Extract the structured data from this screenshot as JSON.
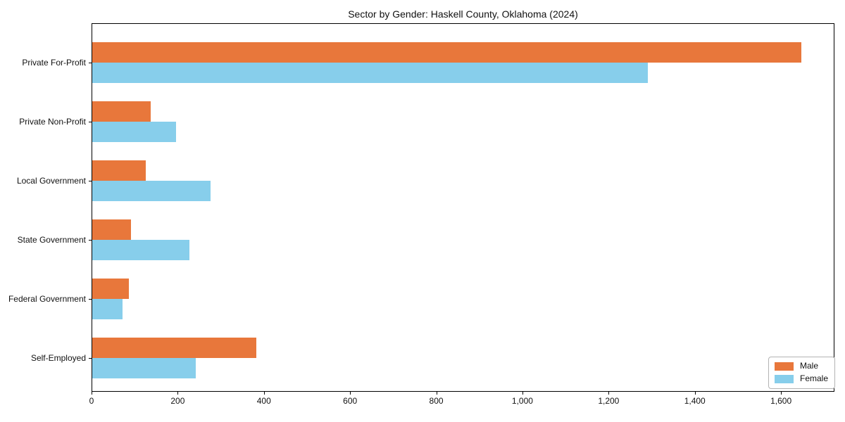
{
  "chart_data": {
    "type": "bar",
    "orientation": "horizontal",
    "title": "Sector by Gender: Haskell County, Oklahoma (2024)",
    "categories": [
      "Private For-Profit",
      "Private Non-Profit",
      "Local Government",
      "State Government",
      "Federal Government",
      "Self-Employed"
    ],
    "series": [
      {
        "name": "Male",
        "color": "#e8773b",
        "values": [
          1645,
          135,
          125,
          90,
          85,
          380
        ]
      },
      {
        "name": "Female",
        "color": "#87ceeb",
        "values": [
          1290,
          195,
          275,
          225,
          70,
          240
        ]
      }
    ],
    "xlabel": "",
    "ylabel": "",
    "xlim": [
      0,
      1724
    ],
    "xticks": [
      0,
      200,
      400,
      600,
      800,
      1000,
      1200,
      1400,
      1600
    ],
    "xtick_labels": [
      "0",
      "200",
      "400",
      "600",
      "800",
      "1,000",
      "1,200",
      "1,400",
      "1,600"
    ],
    "grid": false,
    "legend": {
      "position": "lower-right",
      "entries": [
        "Male",
        "Female"
      ]
    },
    "colors": {
      "male": "#e8773b",
      "female": "#87ceeb",
      "axis": "#000000",
      "legend_border": "#b3b3b3",
      "background": "#ffffff"
    }
  }
}
